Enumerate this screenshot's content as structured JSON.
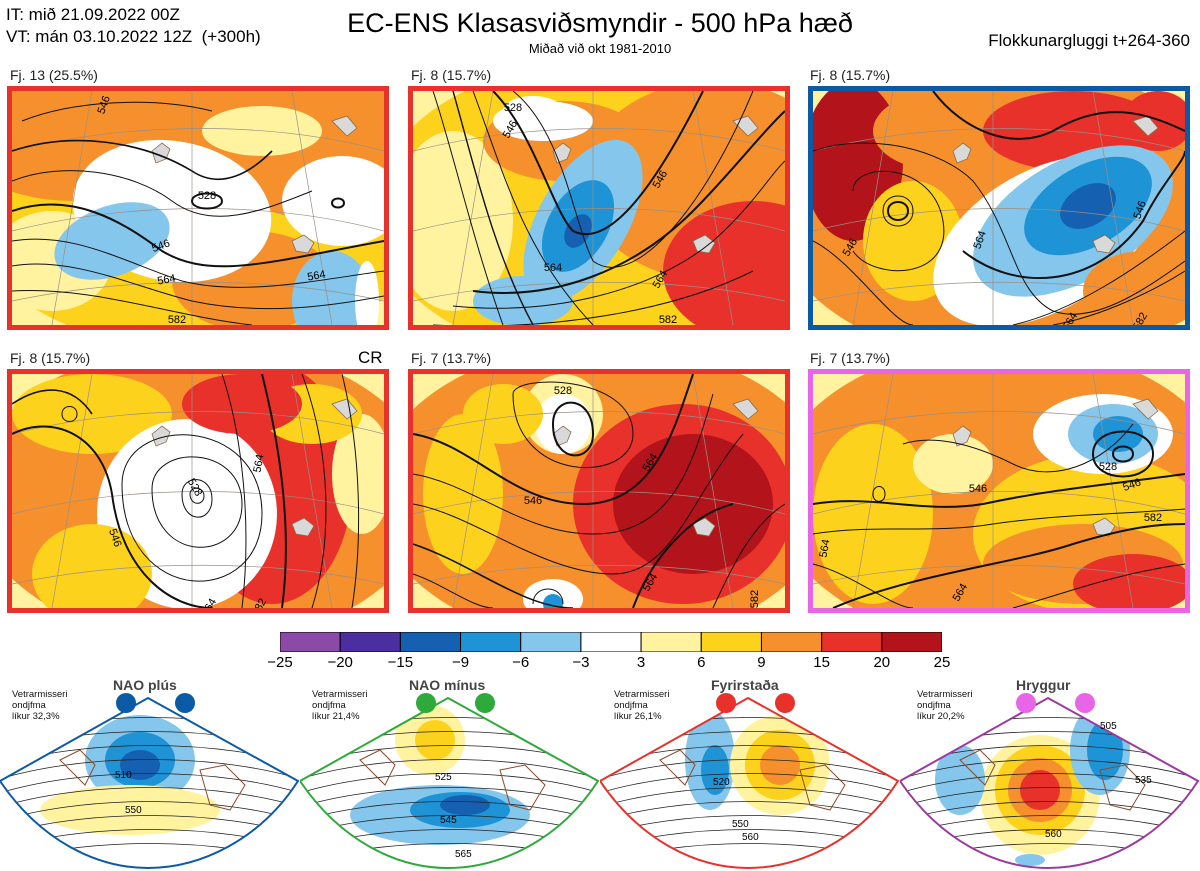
{
  "header": {
    "it_line": "IT: mið 21.09.2022 00Z",
    "vt_line": "VT: mán 03.10.2022 12Z  (+300h)",
    "title": "EC-ENS Klasasviðsmyndir - 500 hPa hæð",
    "subtitle": "Miðað við okt 1981-2010",
    "window": "Flokkunargluggi t+264-360"
  },
  "chart_data": {
    "type": "heatmap",
    "title": "EC-ENS Klasasviðsmyndir - 500 hPa hæð",
    "panels": [
      {
        "label": "Fj. 13 (25.5%)",
        "members": 13,
        "percent": 25.5,
        "frame_color": "#e8312a",
        "contour_labels": [
          "546",
          "528",
          "546",
          "564",
          "564",
          "582"
        ],
        "extra": ""
      },
      {
        "label": "Fj. 8 (15.7%)",
        "members": 8,
        "percent": 15.7,
        "frame_color": "#e8312a",
        "contour_labels": [
          "546",
          "528",
          "546",
          "564",
          "564",
          "582"
        ],
        "extra": ""
      },
      {
        "label": "Fj. 8 (15.7%)",
        "members": 8,
        "percent": 15.7,
        "frame_color": "#0a5aa5",
        "contour_labels": [
          "546",
          "564",
          "546",
          "564",
          "582"
        ],
        "extra": ""
      },
      {
        "label": "Fj. 8 (15.7%)",
        "members": 8,
        "percent": 15.7,
        "frame_color": "#e8312a",
        "contour_labels": [
          "528",
          "546",
          "564",
          "564",
          "582"
        ],
        "extra": "CR"
      },
      {
        "label": "Fj. 7 (13.7%)",
        "members": 7,
        "percent": 13.7,
        "frame_color": "#e8312a",
        "contour_labels": [
          "528",
          "546",
          "564",
          "564",
          "582"
        ],
        "extra": ""
      },
      {
        "label": "Fj. 7 (13.7%)",
        "members": 7,
        "percent": 13.7,
        "frame_color": "#e965e8",
        "contour_labels": [
          "528",
          "546",
          "546",
          "564",
          "564",
          "582"
        ],
        "extra": ""
      }
    ],
    "colorbar": {
      "ticks": [
        "−25",
        "−20",
        "−15",
        "−9",
        "−6",
        "−3",
        "3",
        "6",
        "9",
        "15",
        "20",
        "25"
      ],
      "colors": [
        "#8b4aa8",
        "#4b2fa0",
        "#1560b0",
        "#1e93d6",
        "#84c6ec",
        "#ffffff",
        "#fff3a0",
        "#fdd21c",
        "#f5902c",
        "#e8312a",
        "#b3131a"
      ]
    },
    "regimes": [
      {
        "name": "NAO plús",
        "note": "Vetrarmisseri\nondjfma\nlíkur 32,3%",
        "frame": "#0a5aa5",
        "dot": "#0a5aa5",
        "labels": [
          "510",
          "550"
        ]
      },
      {
        "name": "NAO mínus",
        "note": "Vetrarmisseri\nondjfma\nlíkur 21,4%",
        "frame": "#2eaa3a",
        "dot": "#2eaa3a",
        "labels": [
          "525",
          "545",
          "565"
        ]
      },
      {
        "name": "Fyrirstaða",
        "note": "Vetrarmisseri\nondjfma\nlíkur 26,1%",
        "frame": "#e8312a",
        "dot": "#e8312a",
        "labels": [
          "520",
          "550",
          "560"
        ]
      },
      {
        "name": "Hryggur",
        "note": "Vetrarmisseri\nondjfma\nlíkur 20,2%",
        "frame": "#9b3a9e",
        "dot": "#e965e8",
        "labels": [
          "505",
          "535",
          "560"
        ]
      }
    ]
  }
}
